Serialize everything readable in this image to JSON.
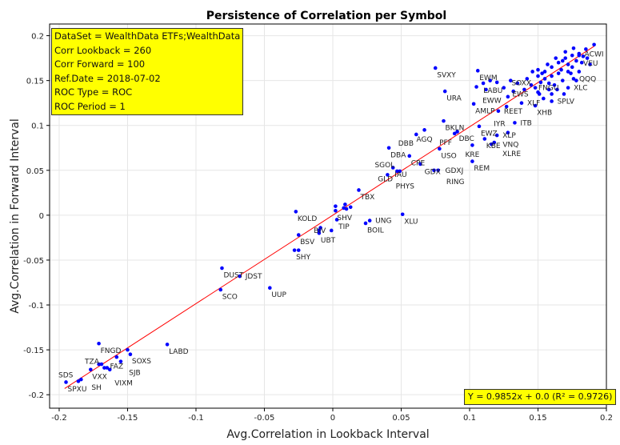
{
  "chart_data": {
    "type": "scatter",
    "title": "Persistence of Correlation per Symbol",
    "xlabel": "Avg.Correlation in Lookback Interval",
    "ylabel": "Avg.Correlation in Forward Interval",
    "xlim": [
      -0.207,
      0.2
    ],
    "ylim": [
      -0.215,
      0.213
    ],
    "xticks": [
      "-0.2",
      "-0.15",
      "-0.1",
      "-0.05",
      "0",
      "0.05",
      "0.1",
      "0.15",
      "0.2"
    ],
    "yticks": [
      "-0.2",
      "-0.15",
      "-0.1",
      "-0.05",
      "0",
      "0.05",
      "0.1",
      "0.15",
      "0.2"
    ],
    "grid": true,
    "point_color": "#0000ff",
    "fit_color": "#ff0000",
    "fit": {
      "slope": 0.9852,
      "intercept": 0.0,
      "r2": 0.9726,
      "label": "Y = 0.9852x + 0.0 (R² = 0.9726)"
    },
    "info_box": [
      "DataSet = WealthData ETFs;WealthData",
      "Corr Lookback = 260",
      "Corr Forward = 100",
      "Ref.Date = 2018-07-02",
      "ROC Type = ROC",
      "ROC Period = 1"
    ],
    "points": [
      {
        "label": "SVXY",
        "x": 0.075,
        "y": 0.164
      },
      {
        "label": "EWM",
        "x": 0.106,
        "y": 0.161
      },
      {
        "label": "URA",
        "x": 0.082,
        "y": 0.138
      },
      {
        "label": "AMLP",
        "x": 0.103,
        "y": 0.124
      },
      {
        "label": "BKLN",
        "x": 0.081,
        "y": 0.105
      },
      {
        "label": "DBC",
        "x": 0.091,
        "y": 0.093
      },
      {
        "label": "PFF",
        "x": 0.089,
        "y": 0.091
      },
      {
        "label": "AGQ",
        "x": 0.067,
        "y": 0.095
      },
      {
        "label": "DBB",
        "x": 0.061,
        "y": 0.09
      },
      {
        "label": "EWZ",
        "x": 0.107,
        "y": 0.099
      },
      {
        "label": "KBE",
        "x": 0.111,
        "y": 0.085
      },
      {
        "label": "VNQ",
        "x": 0.116,
        "y": 0.079
      },
      {
        "label": "XLP",
        "x": 0.12,
        "y": 0.089
      },
      {
        "label": "IYR",
        "x": 0.128,
        "y": 0.092
      },
      {
        "label": "XLRE",
        "x": 0.118,
        "y": 0.081
      },
      {
        "label": "ITB",
        "x": 0.133,
        "y": 0.103
      },
      {
        "label": "KRE",
        "x": 0.102,
        "y": 0.078
      },
      {
        "label": "USO",
        "x": 0.078,
        "y": 0.074
      },
      {
        "label": "REM",
        "x": 0.102,
        "y": 0.06
      },
      {
        "label": "REET",
        "x": 0.121,
        "y": 0.116
      },
      {
        "label": "EWW",
        "x": 0.127,
        "y": 0.121
      },
      {
        "label": "XLF",
        "x": 0.138,
        "y": 0.125
      },
      {
        "label": "XHB",
        "x": 0.148,
        "y": 0.122
      },
      {
        "label": "SPLV",
        "x": 0.16,
        "y": 0.127
      },
      {
        "label": "FNGU",
        "x": 0.169,
        "y": 0.135
      },
      {
        "label": "LABU",
        "x": 0.128,
        "y": 0.132
      },
      {
        "label": "EWS",
        "x": 0.145,
        "y": 0.145
      },
      {
        "label": "SOXX",
        "x": 0.151,
        "y": 0.135
      },
      {
        "label": "ACWI",
        "x": 0.191,
        "y": 0.19
      },
      {
        "label": "VEU",
        "x": 0.18,
        "y": 0.178
      },
      {
        "label": "XLC",
        "x": 0.172,
        "y": 0.142
      },
      {
        "label": "QQQ",
        "x": 0.176,
        "y": 0.152
      },
      {
        "label": "DBA",
        "x": 0.041,
        "y": 0.075
      },
      {
        "label": "CPE",
        "x": 0.056,
        "y": 0.066
      },
      {
        "label": "GDX",
        "x": 0.064,
        "y": 0.057
      },
      {
        "label": "GDXJ",
        "x": 0.074,
        "y": 0.05
      },
      {
        "label": "RING",
        "x": 0.077,
        "y": 0.05
      },
      {
        "label": "IAU",
        "x": 0.044,
        "y": 0.053
      },
      {
        "label": "GLD",
        "x": 0.047,
        "y": 0.049
      },
      {
        "label": "SGOL",
        "x": 0.049,
        "y": 0.049
      },
      {
        "label": "PHYS",
        "x": 0.04,
        "y": 0.045
      },
      {
        "label": "TBX",
        "x": 0.019,
        "y": 0.028
      },
      {
        "label": "KOLD",
        "x": -0.027,
        "y": 0.004
      },
      {
        "label": "SHV",
        "x": 0.002,
        "y": 0.005
      },
      {
        "label": "",
        "x": 0.002,
        "y": 0.01
      },
      {
        "label": "",
        "x": 0.008,
        "y": 0.008
      },
      {
        "label": "",
        "x": 0.009,
        "y": 0.012
      },
      {
        "label": "",
        "x": 0.013,
        "y": 0.009
      },
      {
        "label": "",
        "x": 0.01,
        "y": 0.007
      },
      {
        "label": "TIP",
        "x": 0.003,
        "y": -0.005
      },
      {
        "label": "XLU",
        "x": 0.051,
        "y": 0.001
      },
      {
        "label": "BOIL",
        "x": 0.024,
        "y": -0.009
      },
      {
        "label": "UNG",
        "x": 0.027,
        "y": -0.006
      },
      {
        "label": "",
        "x": -0.01,
        "y": -0.017
      },
      {
        "label": "",
        "x": -0.009,
        "y": -0.014
      },
      {
        "label": "UBT",
        "x": -0.01,
        "y": -0.02
      },
      {
        "label": "BIV",
        "x": -0.001,
        "y": -0.017
      },
      {
        "label": "BSV",
        "x": -0.025,
        "y": -0.022
      },
      {
        "label": "SHY",
        "x": -0.028,
        "y": -0.039
      },
      {
        "label": "",
        "x": -0.025,
        "y": -0.039
      },
      {
        "label": "DUST",
        "x": -0.081,
        "y": -0.059
      },
      {
        "label": "JDST",
        "x": -0.068,
        "y": -0.068
      },
      {
        "label": "SCO",
        "x": -0.082,
        "y": -0.083
      },
      {
        "label": "UUP",
        "x": -0.046,
        "y": -0.081
      },
      {
        "label": "FNGD",
        "x": -0.171,
        "y": -0.143
      },
      {
        "label": "LABD",
        "x": -0.121,
        "y": -0.144
      },
      {
        "label": "",
        "x": -0.15,
        "y": -0.15
      },
      {
        "label": "SOXS",
        "x": -0.148,
        "y": -0.155
      },
      {
        "label": "FAZ",
        "x": -0.158,
        "y": -0.158
      },
      {
        "label": "SJB",
        "x": -0.155,
        "y": -0.163
      },
      {
        "label": "",
        "x": -0.171,
        "y": -0.166
      },
      {
        "label": "",
        "x": -0.169,
        "y": -0.166
      },
      {
        "label": "VXX",
        "x": -0.177,
        "y": -0.172
      },
      {
        "label": "TZA",
        "x": -0.167,
        "y": -0.17
      },
      {
        "label": "",
        "x": -0.165,
        "y": -0.17
      },
      {
        "label": "VIXM",
        "x": -0.163,
        "y": -0.172
      },
      {
        "label": "SPXU",
        "x": -0.195,
        "y": -0.186
      },
      {
        "label": "SDS",
        "x": -0.186,
        "y": -0.185
      },
      {
        "label": "SH",
        "x": -0.184,
        "y": -0.183
      },
      {
        "label": "",
        "x": 0.15,
        "y": 0.155
      },
      {
        "label": "",
        "x": 0.155,
        "y": 0.16
      },
      {
        "label": "",
        "x": 0.16,
        "y": 0.165
      },
      {
        "label": "",
        "x": 0.165,
        "y": 0.17
      },
      {
        "label": "",
        "x": 0.17,
        "y": 0.175
      },
      {
        "label": "",
        "x": 0.175,
        "y": 0.178
      },
      {
        "label": "",
        "x": 0.18,
        "y": 0.18
      },
      {
        "label": "",
        "x": 0.185,
        "y": 0.185
      },
      {
        "label": "",
        "x": 0.178,
        "y": 0.172
      },
      {
        "label": "",
        "x": 0.172,
        "y": 0.16
      },
      {
        "label": "",
        "x": 0.168,
        "y": 0.15
      },
      {
        "label": "",
        "x": 0.162,
        "y": 0.145
      },
      {
        "label": "",
        "x": 0.158,
        "y": 0.14
      },
      {
        "label": "",
        "x": 0.152,
        "y": 0.148
      },
      {
        "label": "",
        "x": 0.148,
        "y": 0.142
      },
      {
        "label": "",
        "x": 0.155,
        "y": 0.152
      },
      {
        "label": "",
        "x": 0.165,
        "y": 0.158
      },
      {
        "label": "",
        "x": 0.175,
        "y": 0.165
      },
      {
        "label": "",
        "x": 0.182,
        "y": 0.17
      },
      {
        "label": "",
        "x": 0.186,
        "y": 0.175
      },
      {
        "label": "",
        "x": 0.18,
        "y": 0.16
      },
      {
        "label": "",
        "x": 0.16,
        "y": 0.135
      },
      {
        "label": "",
        "x": 0.15,
        "y": 0.137
      },
      {
        "label": "",
        "x": 0.14,
        "y": 0.14
      },
      {
        "label": "",
        "x": 0.135,
        "y": 0.147
      },
      {
        "label": "",
        "x": 0.13,
        "y": 0.15
      },
      {
        "label": "",
        "x": 0.12,
        "y": 0.148
      },
      {
        "label": "",
        "x": 0.115,
        "y": 0.15
      },
      {
        "label": "",
        "x": 0.11,
        "y": 0.147
      },
      {
        "label": "",
        "x": 0.105,
        "y": 0.143
      },
      {
        "label": "",
        "x": 0.112,
        "y": 0.14
      },
      {
        "label": "",
        "x": 0.125,
        "y": 0.142
      },
      {
        "label": "",
        "x": 0.132,
        "y": 0.138
      },
      {
        "label": "",
        "x": 0.142,
        "y": 0.152
      },
      {
        "label": "",
        "x": 0.15,
        "y": 0.162
      },
      {
        "label": "",
        "x": 0.157,
        "y": 0.168
      },
      {
        "label": "",
        "x": 0.163,
        "y": 0.175
      },
      {
        "label": "",
        "x": 0.17,
        "y": 0.182
      },
      {
        "label": "",
        "x": 0.176,
        "y": 0.186
      },
      {
        "label": "",
        "x": 0.183,
        "y": 0.177
      },
      {
        "label": "",
        "x": 0.188,
        "y": 0.168
      },
      {
        "label": "",
        "x": 0.178,
        "y": 0.15
      },
      {
        "label": "",
        "x": 0.167,
        "y": 0.162
      },
      {
        "label": "",
        "x": 0.153,
        "y": 0.158
      },
      {
        "label": "",
        "x": 0.146,
        "y": 0.16
      },
      {
        "label": "",
        "x": 0.16,
        "y": 0.155
      },
      {
        "label": "",
        "x": 0.172,
        "y": 0.168
      },
      {
        "label": "",
        "x": 0.158,
        "y": 0.147
      },
      {
        "label": "",
        "x": 0.168,
        "y": 0.172
      },
      {
        "label": "",
        "x": 0.174,
        "y": 0.158
      },
      {
        "label": "",
        "x": 0.164,
        "y": 0.14
      },
      {
        "label": "",
        "x": 0.154,
        "y": 0.13
      }
    ]
  }
}
